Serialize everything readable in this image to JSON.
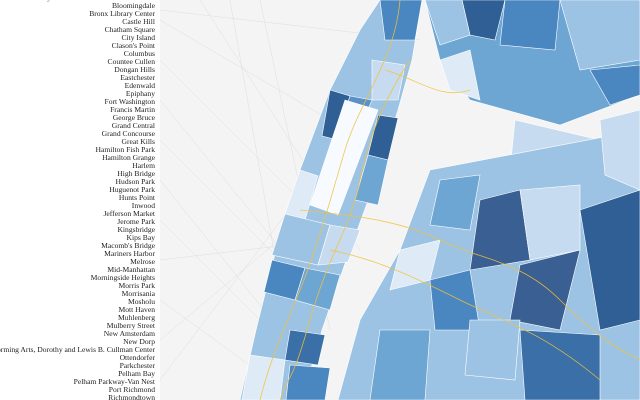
{
  "libraries": [
    "Belmont Library and Enrico Fermi Cultural Center",
    "Bloomingdale",
    "Bronx Library Center",
    "Castle Hill",
    "Chatham Square",
    "City Island",
    "Clason's Point",
    "Columbus",
    "Countee Cullen",
    "Dongan Hills",
    "Eastchester",
    "Edenwald",
    "Epiphany",
    "Fort Washington",
    "Francis Martin",
    "George Bruce",
    "Grand Central",
    "Grand Concourse",
    "Great Kills",
    "Hamilton Fish Park",
    "Hamilton Grange",
    "Harlem",
    "High Bridge",
    "Hudson Park",
    "Huguenot Park",
    "Hunts Point",
    "Inwood",
    "Jefferson Market",
    "Jerome Park",
    "Kingsbridge",
    "Kips Bay",
    "Macomb's Bridge",
    "Mariners Harbor",
    "Melrose",
    "Mid-Manhattan",
    "Morningside Heights",
    "Morris Park",
    "Morrisania",
    "Mosholu",
    "Mott Haven",
    "Muhlenberg",
    "Mulberry Street",
    "New Amsterdam",
    "New Dorp",
    "Performing Arts, Dorothy and Lewis B. Cullman Center",
    "Ottendorfer",
    "Parkchester",
    "Pelham Bay",
    "Pelham Parkway-Van Nest",
    "Port Richmond",
    "Richmondtown"
  ]
}
